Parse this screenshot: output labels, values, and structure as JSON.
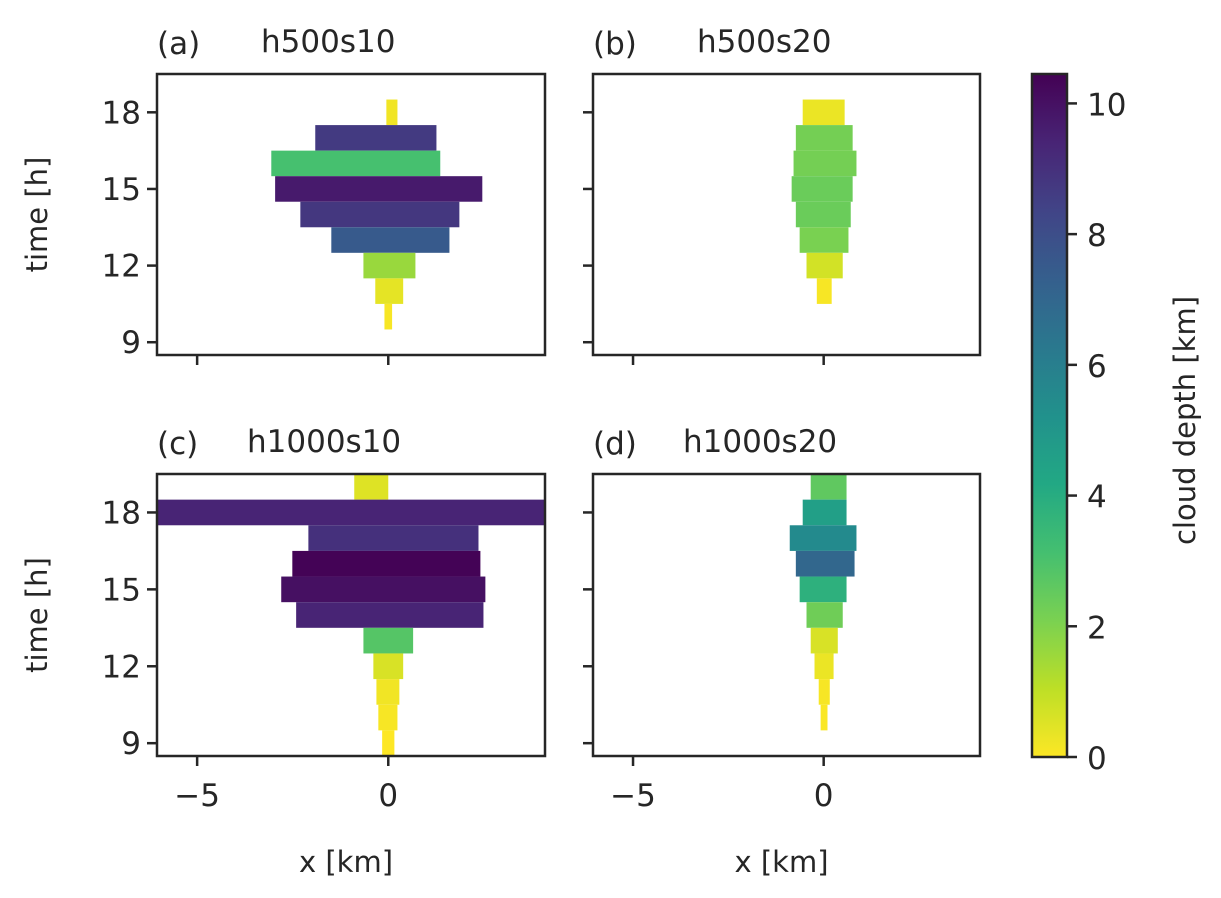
{
  "chart_data": [
    {
      "type": "heatmap",
      "panel": "a",
      "title": "h500s10",
      "label": "(a)",
      "xlabel": "",
      "ylabel": "time [h]",
      "xlim": [
        -6.05,
        4.1
      ],
      "ylim": [
        8.5,
        19.5
      ],
      "xticks": [
        -5,
        0
      ],
      "yticks": [
        9,
        12,
        15,
        18
      ],
      "show_xticklabels": false,
      "show_yticklabels": true,
      "rows": [
        {
          "time": 18,
          "x0": -0.05,
          "x1": 0.24,
          "depth": 0.2
        },
        {
          "time": 17,
          "x0": -1.91,
          "x1": 1.26,
          "depth": 8.7
        },
        {
          "time": 16,
          "x0": -3.06,
          "x1": 1.36,
          "depth": 3.1
        },
        {
          "time": 15,
          "x0": -2.96,
          "x1": 2.46,
          "depth": 9.7
        },
        {
          "time": 14,
          "x0": -2.3,
          "x1": 1.86,
          "depth": 8.8
        },
        {
          "time": 13,
          "x0": -1.49,
          "x1": 1.6,
          "depth": 7.5
        },
        {
          "time": 12,
          "x0": -0.65,
          "x1": 0.71,
          "depth": 1.6
        },
        {
          "time": 11,
          "x0": -0.34,
          "x1": 0.39,
          "depth": 0.4
        },
        {
          "time": 10,
          "x0": -0.1,
          "x1": 0.1,
          "depth": 0.1
        }
      ]
    },
    {
      "type": "heatmap",
      "panel": "b",
      "title": "h500s20",
      "label": "(b)",
      "xlabel": "",
      "ylabel": "",
      "xlim": [
        -6.05,
        4.1
      ],
      "ylim": [
        8.5,
        19.5
      ],
      "xticks": [
        -5,
        0
      ],
      "yticks": [
        9,
        12,
        15,
        18
      ],
      "show_xticklabels": false,
      "show_yticklabels": false,
      "rows": [
        {
          "time": 18,
          "x0": -0.55,
          "x1": 0.55,
          "depth": 0.3
        },
        {
          "time": 17,
          "x0": -0.73,
          "x1": 0.76,
          "depth": 2.2
        },
        {
          "time": 16,
          "x0": -0.79,
          "x1": 0.86,
          "depth": 2.2
        },
        {
          "time": 15,
          "x0": -0.84,
          "x1": 0.76,
          "depth": 2.4
        },
        {
          "time": 14,
          "x0": -0.73,
          "x1": 0.71,
          "depth": 2.4
        },
        {
          "time": 13,
          "x0": -0.63,
          "x1": 0.65,
          "depth": 2.1
        },
        {
          "time": 12,
          "x0": -0.45,
          "x1": 0.5,
          "depth": 0.7
        },
        {
          "time": 11,
          "x0": -0.18,
          "x1": 0.21,
          "depth": 0.1
        }
      ]
    },
    {
      "type": "heatmap",
      "panel": "c",
      "title": "h1000s10",
      "label": "(c)",
      "xlabel": "x [km]",
      "ylabel": "time [h]",
      "xlim": [
        -6.05,
        4.1
      ],
      "ylim": [
        8.5,
        19.5
      ],
      "xticks": [
        -5,
        0
      ],
      "yticks": [
        9,
        12,
        15,
        18
      ],
      "show_xticklabels": true,
      "show_yticklabels": true,
      "rows": [
        {
          "time": 19,
          "x0": -0.89,
          "x1": 0.0,
          "depth": 0.5
        },
        {
          "time": 18,
          "x0": -6.05,
          "x1": 4.1,
          "depth": 9.4
        },
        {
          "time": 17,
          "x0": -2.09,
          "x1": 2.36,
          "depth": 9.0
        },
        {
          "time": 16,
          "x0": -2.51,
          "x1": 2.41,
          "depth": 10.4
        },
        {
          "time": 15,
          "x0": -2.8,
          "x1": 2.54,
          "depth": 10.0
        },
        {
          "time": 14,
          "x0": -2.41,
          "x1": 2.49,
          "depth": 9.4
        },
        {
          "time": 13,
          "x0": -0.65,
          "x1": 0.65,
          "depth": 2.8
        },
        {
          "time": 12,
          "x0": -0.39,
          "x1": 0.39,
          "depth": 0.6
        },
        {
          "time": 11,
          "x0": -0.31,
          "x1": 0.29,
          "depth": 0.2
        },
        {
          "time": 10,
          "x0": -0.26,
          "x1": 0.24,
          "depth": 0.1
        },
        {
          "time": 9,
          "x0": -0.16,
          "x1": 0.16,
          "depth": 0.0
        }
      ]
    },
    {
      "type": "heatmap",
      "panel": "d",
      "title": "h1000s20",
      "label": "(d)",
      "xlabel": "x [km]",
      "ylabel": "",
      "xlim": [
        -6.05,
        4.1
      ],
      "ylim": [
        8.5,
        19.5
      ],
      "xticks": [
        -5,
        0
      ],
      "yticks": [
        9,
        12,
        15,
        18
      ],
      "show_xticklabels": true,
      "show_yticklabels": false,
      "rows": [
        {
          "time": 19,
          "x0": -0.34,
          "x1": 0.6,
          "depth": 2.6
        },
        {
          "time": 18,
          "x0": -0.55,
          "x1": 0.6,
          "depth": 4.6
        },
        {
          "time": 17,
          "x0": -0.89,
          "x1": 0.86,
          "depth": 5.5
        },
        {
          "time": 16,
          "x0": -0.73,
          "x1": 0.81,
          "depth": 7.0
        },
        {
          "time": 15,
          "x0": -0.63,
          "x1": 0.6,
          "depth": 3.8
        },
        {
          "time": 14,
          "x0": -0.45,
          "x1": 0.5,
          "depth": 2.3
        },
        {
          "time": 13,
          "x0": -0.34,
          "x1": 0.37,
          "depth": 0.6
        },
        {
          "time": 12,
          "x0": -0.24,
          "x1": 0.26,
          "depth": 0.3
        },
        {
          "time": 11,
          "x0": -0.13,
          "x1": 0.16,
          "depth": 0.1
        },
        {
          "time": 10,
          "x0": -0.08,
          "x1": 0.1,
          "depth": 0.05
        }
      ]
    }
  ],
  "colorbar": {
    "label": "cloud depth [km]",
    "colormap": "viridis_r",
    "range": [
      0,
      10.45
    ],
    "ticks": [
      0,
      2,
      4,
      6,
      8,
      10
    ]
  }
}
